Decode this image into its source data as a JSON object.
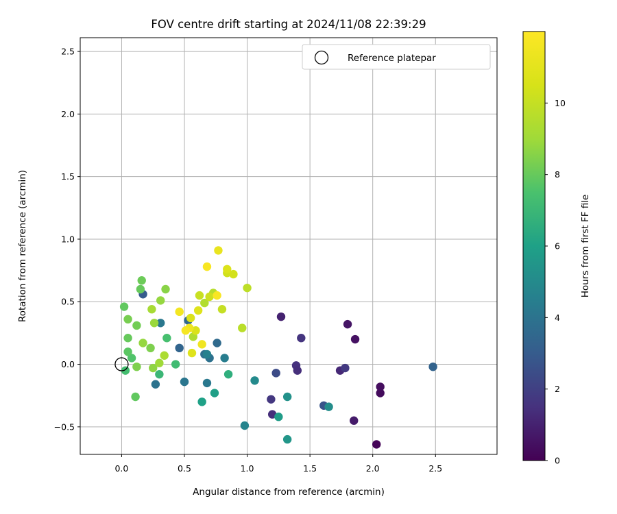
{
  "chart_data": {
    "type": "scatter",
    "title": "FOV centre drift starting at 2024/11/08 22:39:29",
    "xlabel": "Angular distance from reference (arcmin)",
    "ylabel": "Rotation from reference (arcmin)",
    "xlim": [
      -0.33,
      2.99
    ],
    "ylim": [
      -0.72,
      2.61
    ],
    "xticks": [
      0.0,
      0.5,
      1.0,
      1.5,
      2.0,
      2.5
    ],
    "xtick_labels": [
      "0.0",
      "0.5",
      "1.0",
      "1.5",
      "2.0",
      "2.5"
    ],
    "yticks": [
      -0.5,
      0.0,
      0.5,
      1.0,
      1.5,
      2.0,
      2.5
    ],
    "ytick_labels": [
      "−0.5",
      "0.0",
      "0.5",
      "1.0",
      "1.5",
      "2.0",
      "2.5"
    ],
    "grid": true,
    "legend": {
      "placement": "top-right",
      "entries": [
        "Reference platepar"
      ]
    },
    "reference_point": {
      "x": 0.0,
      "y": 0.0
    },
    "colorbar": {
      "label": "Hours from first FF file",
      "colormap": "viridis",
      "range": [
        0,
        12
      ],
      "ticks": [
        0,
        2,
        4,
        6,
        8,
        10
      ],
      "tick_labels": [
        "0",
        "2",
        "4",
        "6",
        "8",
        "10"
      ]
    },
    "points": [
      {
        "x": 2.03,
        "y": -0.64,
        "hours": 0.1
      },
      {
        "x": 2.06,
        "y": -0.23,
        "hours": 0.3
      },
      {
        "x": 2.06,
        "y": -0.18,
        "hours": 0.4
      },
      {
        "x": 1.86,
        "y": 0.2,
        "hours": 0.5
      },
      {
        "x": 1.8,
        "y": 0.32,
        "hours": 0.6
      },
      {
        "x": 1.85,
        "y": -0.45,
        "hours": 0.8
      },
      {
        "x": 1.27,
        "y": 0.38,
        "hours": 1.0
      },
      {
        "x": 1.74,
        "y": -0.05,
        "hours": 1.2
      },
      {
        "x": 1.78,
        "y": -0.03,
        "hours": 1.8
      },
      {
        "x": 1.43,
        "y": 0.21,
        "hours": 1.6
      },
      {
        "x": 1.39,
        "y": -0.01,
        "hours": 1.5
      },
      {
        "x": 1.4,
        "y": -0.05,
        "hours": 1.4
      },
      {
        "x": 1.2,
        "y": -0.4,
        "hours": 1.4
      },
      {
        "x": 1.19,
        "y": -0.28,
        "hours": 1.7
      },
      {
        "x": 1.23,
        "y": -0.07,
        "hours": 2.4
      },
      {
        "x": 1.61,
        "y": -0.33,
        "hours": 2.7
      },
      {
        "x": 2.48,
        "y": -0.02,
        "hours": 3.3
      },
      {
        "x": 0.17,
        "y": 0.56,
        "hours": 3.0
      },
      {
        "x": 0.46,
        "y": 0.13,
        "hours": 3.4
      },
      {
        "x": 0.53,
        "y": 0.35,
        "hours": 3.5
      },
      {
        "x": 0.76,
        "y": 0.17,
        "hours": 3.6
      },
      {
        "x": 0.66,
        "y": 0.08,
        "hours": 3.8
      },
      {
        "x": 0.7,
        "y": 0.05,
        "hours": 3.9
      },
      {
        "x": 0.27,
        "y": -0.16,
        "hours": 4.0
      },
      {
        "x": 0.5,
        "y": -0.14,
        "hours": 4.1
      },
      {
        "x": 0.31,
        "y": 0.33,
        "hours": 4.2
      },
      {
        "x": 0.68,
        "y": -0.15,
        "hours": 4.2
      },
      {
        "x": 0.82,
        "y": 0.05,
        "hours": 4.4
      },
      {
        "x": 0.68,
        "y": 0.08,
        "hours": 4.6
      },
      {
        "x": 0.98,
        "y": -0.49,
        "hours": 4.7
      },
      {
        "x": 1.06,
        "y": -0.13,
        "hours": 5.0
      },
      {
        "x": 1.65,
        "y": -0.34,
        "hours": 5.1
      },
      {
        "x": 1.32,
        "y": -0.26,
        "hours": 5.3
      },
      {
        "x": 1.32,
        "y": -0.6,
        "hours": 5.5
      },
      {
        "x": 1.25,
        "y": -0.42,
        "hours": 5.8
      },
      {
        "x": 0.74,
        "y": -0.23,
        "hours": 5.9
      },
      {
        "x": 0.64,
        "y": -0.3,
        "hours": 6.0
      },
      {
        "x": 0.85,
        "y": -0.08,
        "hours": 6.6
      },
      {
        "x": 0.3,
        "y": -0.08,
        "hours": 7.0
      },
      {
        "x": 0.43,
        "y": 0.0,
        "hours": 7.2
      },
      {
        "x": 0.03,
        "y": -0.05,
        "hours": 7.3
      },
      {
        "x": 0.36,
        "y": 0.21,
        "hours": 7.4
      },
      {
        "x": 0.08,
        "y": 0.05,
        "hours": 7.6
      },
      {
        "x": 0.05,
        "y": 0.1,
        "hours": 7.8
      },
      {
        "x": 0.02,
        "y": 0.46,
        "hours": 7.9
      },
      {
        "x": 0.11,
        "y": -0.26,
        "hours": 7.9
      },
      {
        "x": 0.05,
        "y": 0.21,
        "hours": 8.0
      },
      {
        "x": 0.12,
        "y": 0.31,
        "hours": 8.2
      },
      {
        "x": 0.15,
        "y": 0.6,
        "hours": 8.0
      },
      {
        "x": 0.16,
        "y": 0.67,
        "hours": 8.1
      },
      {
        "x": 0.05,
        "y": 0.36,
        "hours": 8.3
      },
      {
        "x": 0.12,
        "y": -0.02,
        "hours": 8.4
      },
      {
        "x": 0.23,
        "y": 0.13,
        "hours": 8.4
      },
      {
        "x": 0.25,
        "y": -0.03,
        "hours": 8.7
      },
      {
        "x": 0.35,
        "y": 0.6,
        "hours": 8.6
      },
      {
        "x": 0.31,
        "y": 0.51,
        "hours": 8.8
      },
      {
        "x": 0.17,
        "y": 0.17,
        "hours": 8.8
      },
      {
        "x": 0.3,
        "y": 0.01,
        "hours": 9.0
      },
      {
        "x": 0.26,
        "y": 0.33,
        "hours": 8.9
      },
      {
        "x": 0.24,
        "y": 0.44,
        "hours": 9.2
      },
      {
        "x": 0.34,
        "y": 0.07,
        "hours": 9.3
      },
      {
        "x": 0.57,
        "y": 0.22,
        "hours": 9.4
      },
      {
        "x": 0.66,
        "y": 0.49,
        "hours": 9.5
      },
      {
        "x": 0.73,
        "y": 0.57,
        "hours": 9.6
      },
      {
        "x": 0.96,
        "y": 0.29,
        "hours": 9.7
      },
      {
        "x": 1.0,
        "y": 0.61,
        "hours": 9.8
      },
      {
        "x": 0.8,
        "y": 0.44,
        "hours": 10.0
      },
      {
        "x": 0.62,
        "y": 0.55,
        "hours": 10.1
      },
      {
        "x": 0.7,
        "y": 0.54,
        "hours": 10.2
      },
      {
        "x": 0.84,
        "y": 0.73,
        "hours": 10.3
      },
      {
        "x": 0.89,
        "y": 0.72,
        "hours": 10.4
      },
      {
        "x": 0.55,
        "y": 0.37,
        "hours": 10.6
      },
      {
        "x": 0.59,
        "y": 0.27,
        "hours": 10.6
      },
      {
        "x": 0.84,
        "y": 0.76,
        "hours": 10.7
      },
      {
        "x": 0.56,
        "y": 0.09,
        "hours": 10.8
      },
      {
        "x": 0.61,
        "y": 0.43,
        "hours": 10.8
      },
      {
        "x": 0.77,
        "y": 0.91,
        "hours": 11.2
      },
      {
        "x": 0.54,
        "y": 0.29,
        "hours": 11.4
      },
      {
        "x": 0.64,
        "y": 0.16,
        "hours": 11.5
      },
      {
        "x": 0.46,
        "y": 0.42,
        "hours": 11.6
      },
      {
        "x": 0.51,
        "y": 0.27,
        "hours": 11.7
      },
      {
        "x": 0.68,
        "y": 0.78,
        "hours": 11.8
      },
      {
        "x": 0.76,
        "y": 0.55,
        "hours": 11.8
      }
    ]
  }
}
